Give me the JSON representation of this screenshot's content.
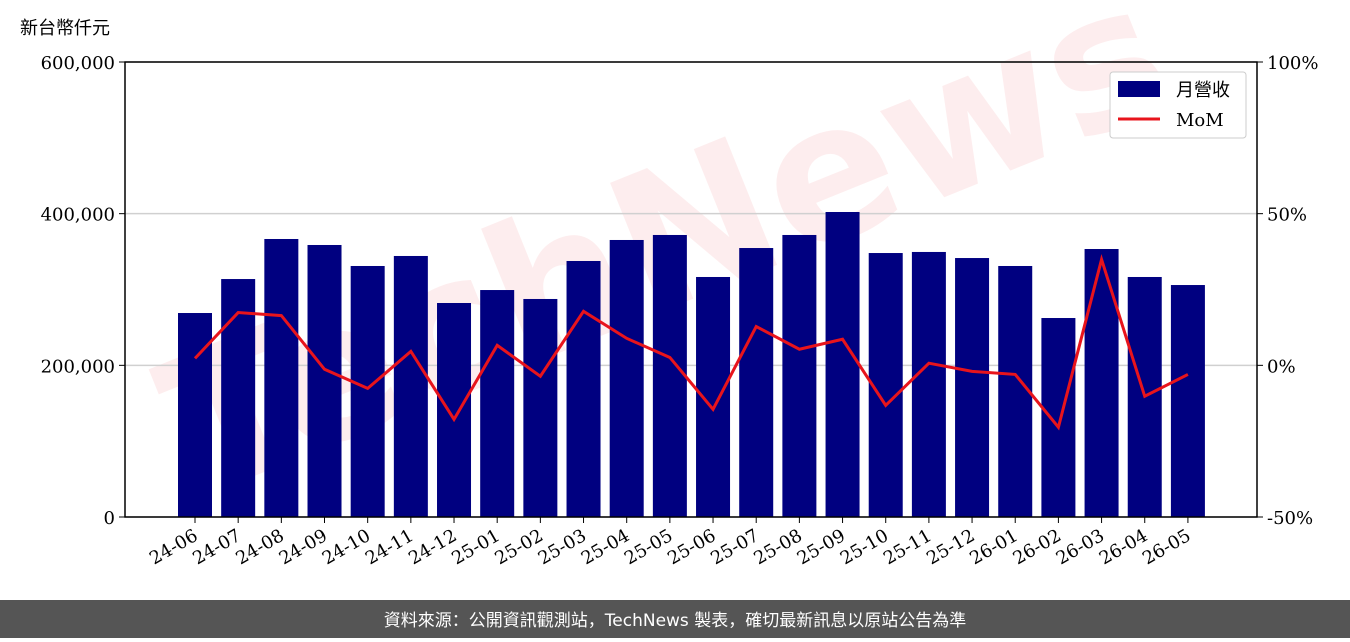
{
  "chart_data": {
    "type": "bar_line",
    "y_label": "新台幣仟元",
    "watermark": "TechNews",
    "footer": "資料來源：公開資訊觀測站，TechNews 製表，確切最新訊息以原站公告為準",
    "categories": [
      "24-06",
      "24-07",
      "24-08",
      "24-09",
      "24-10",
      "24-11",
      "24-12",
      "25-01",
      "25-02",
      "25-03",
      "25-04",
      "25-05",
      "25-06",
      "25-07",
      "25-08",
      "25-09",
      "25-10",
      "25-11",
      "25-12",
      "26-01",
      "26-02",
      "26-03",
      "26-04",
      "26-05"
    ],
    "series": [
      {
        "name": "月營收",
        "type": "bar",
        "color": "#000080",
        "values": [
          269000,
          313800,
          366600,
          358700,
          331000,
          344200,
          282200,
          299300,
          287500,
          337600,
          365300,
          371900,
          316500,
          354700,
          371900,
          402200,
          348100,
          349500,
          341500,
          331000,
          262400,
          353400,
          316500,
          305900
        ]
      },
      {
        "name": "MoM",
        "type": "line",
        "axis": "y2",
        "color": "#e8141c",
        "values": [
          2.3,
          17.4,
          16.4,
          -1.3,
          -7.6,
          4.6,
          -17.8,
          6.6,
          -3.6,
          17.8,
          8.9,
          2.6,
          -14.5,
          12.8,
          5.3,
          8.6,
          -13.2,
          0.7,
          -2.0,
          -3.0,
          -20.4,
          34.9,
          -10.2,
          -3.0
        ]
      }
    ],
    "ylim": [
      0,
      600000
    ],
    "yticks": [
      0,
      {
        "value": 200000,
        "label": "200,000"
      },
      {
        "value": 400000,
        "label": "400,000"
      },
      {
        "value": 600000,
        "label": "600,000"
      }
    ],
    "y2lim": [
      -50,
      100
    ],
    "y2ticks": [
      {
        "value": -50,
        "label": "-50%"
      },
      {
        "value": 0,
        "label": "0%"
      },
      {
        "value": 50,
        "label": "50%"
      },
      {
        "value": 100,
        "label": "100%"
      }
    ],
    "grid": true,
    "legend": "upper right"
  }
}
